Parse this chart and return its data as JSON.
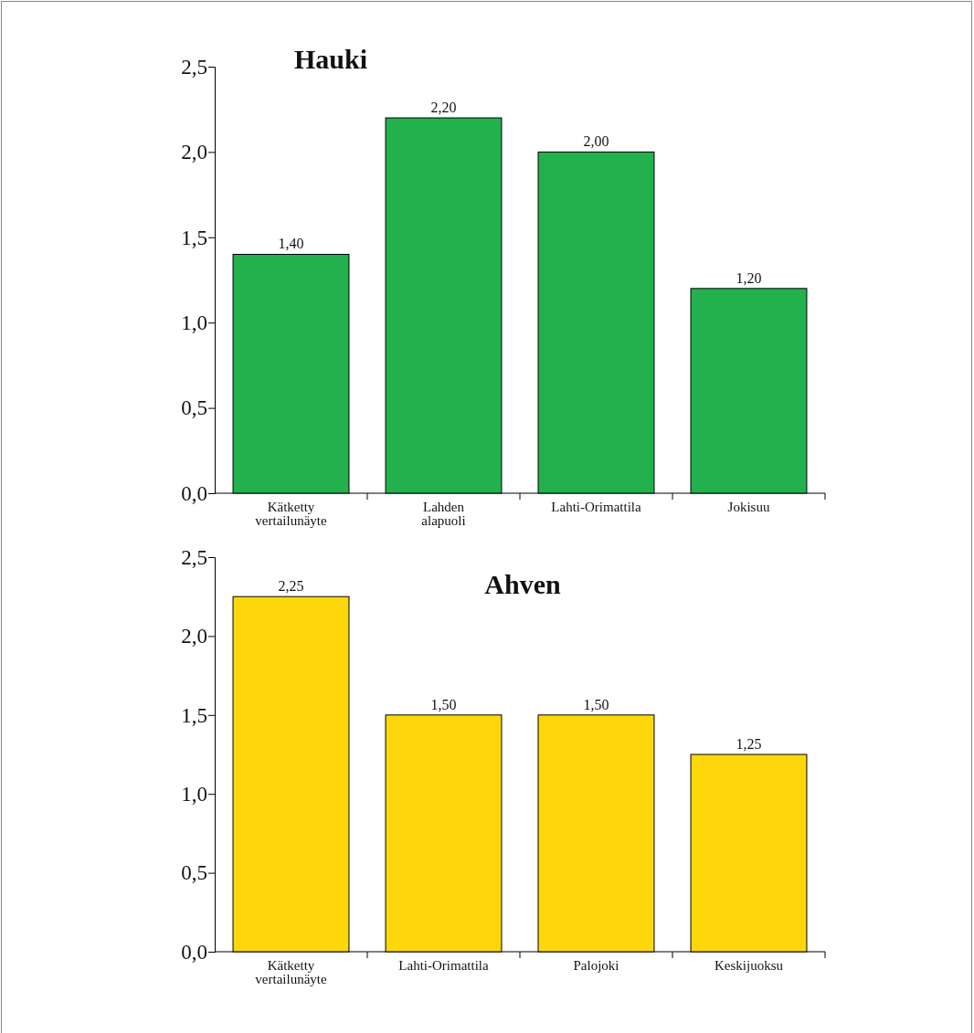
{
  "chart_data": [
    {
      "type": "bar",
      "title": "Hauki",
      "categories": [
        "Kätketty vertailunäyte",
        "Lahden alapuoli",
        "Lahti-Orimattila",
        "Jokisuu"
      ],
      "values": [
        1.4,
        2.2,
        2.0,
        1.2
      ],
      "value_labels": [
        "1,40",
        "2,20",
        "2,00",
        "1,20"
      ],
      "color": "#22b14c",
      "ylim": [
        0,
        2.5
      ],
      "yticks": [
        {
          "value": 0,
          "label": "0,0"
        },
        {
          "value": 0.5,
          "label": "0,5"
        },
        {
          "value": 1,
          "label": "1,0"
        },
        {
          "value": 1.5,
          "label": "1,5"
        },
        {
          "value": 2,
          "label": "2,0"
        },
        {
          "value": 2.5,
          "label": "2,5"
        }
      ]
    },
    {
      "type": "bar",
      "title": "Ahven",
      "categories": [
        "Kätketty vertailunäyte",
        "Lahti-Orimattila",
        "Palojoki",
        "Keskijuoksu"
      ],
      "values": [
        2.25,
        1.5,
        1.5,
        1.25
      ],
      "value_labels": [
        "2,25",
        "1,50",
        "1,50",
        "1,25"
      ],
      "color": "#fdd70a",
      "ylim": [
        0,
        2.5
      ],
      "yticks": [
        {
          "value": 0,
          "label": "0,0"
        },
        {
          "value": 0.5,
          "label": "0,5"
        },
        {
          "value": 1,
          "label": "1,0"
        },
        {
          "value": 1.5,
          "label": "1,5"
        },
        {
          "value": 2,
          "label": "2,0"
        },
        {
          "value": 2.5,
          "label": "2,5"
        }
      ]
    }
  ]
}
